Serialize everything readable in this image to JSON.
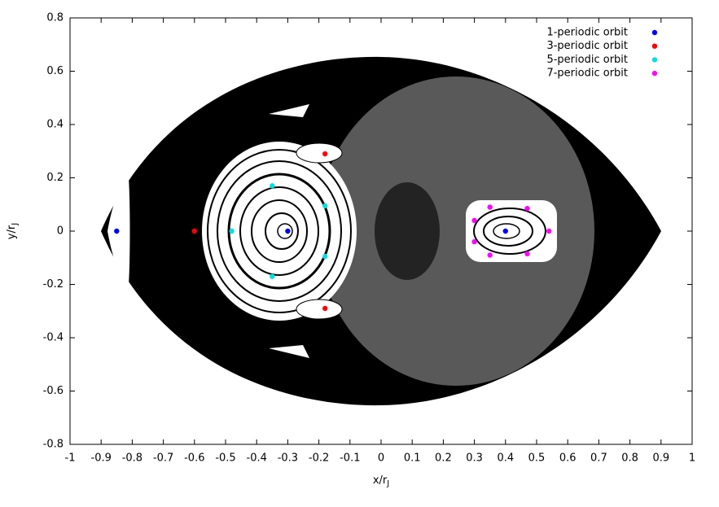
{
  "chart_data": {
    "type": "scatter",
    "xlabel": "x/r",
    "xlabel_sub": "J",
    "ylabel": "y/r",
    "ylabel_sub": "J",
    "xlim": [
      -1,
      1
    ],
    "ylim": [
      -0.8,
      0.8
    ],
    "xticks": [
      -1,
      -0.9,
      -0.8,
      -0.7,
      -0.6,
      -0.5,
      -0.4,
      -0.3,
      -0.2,
      -0.1,
      0,
      0.1,
      0.2,
      0.3,
      0.4,
      0.5,
      0.6,
      0.7,
      0.8,
      0.9,
      1
    ],
    "yticks": [
      -0.8,
      -0.6,
      -0.4,
      -0.2,
      0,
      0.2,
      0.4,
      0.6,
      0.8
    ],
    "legend": "top-right",
    "series": [
      {
        "name": "1-periodic orbit",
        "color": "#0000ff",
        "x": [
          -0.3,
          0.4,
          -0.85
        ],
        "values": [
          0,
          0,
          0
        ]
      },
      {
        "name": "3-periodic orbit",
        "color": "#ff0000",
        "x": [
          -0.6,
          -0.18,
          -0.18
        ],
        "values": [
          0,
          0.29,
          -0.29
        ]
      },
      {
        "name": "5-periodic orbit",
        "color": "#00e0e0",
        "x": [
          -0.35,
          -0.18,
          -0.18,
          -0.35,
          -0.48
        ],
        "values": [
          0.17,
          0.095,
          -0.095,
          -0.17,
          0
        ]
      },
      {
        "name": "7-periodic orbit",
        "color": "#ff00ff",
        "x": [
          0.3,
          0.35,
          0.47,
          0.54,
          0.47,
          0.35,
          0.3
        ],
        "values": [
          0.04,
          0.09,
          0.085,
          0,
          -0.085,
          -0.09,
          -0.04
        ]
      }
    ]
  }
}
